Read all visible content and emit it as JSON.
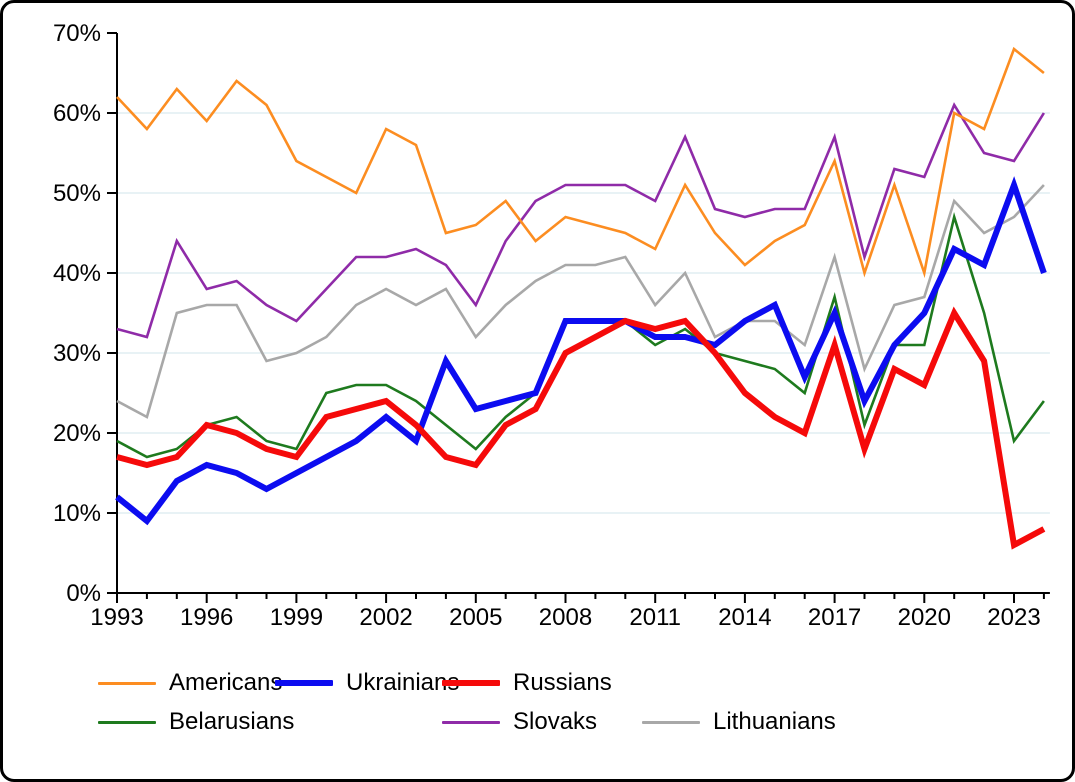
{
  "chart_data": {
    "type": "line",
    "title": "",
    "xlabel": "",
    "ylabel": "",
    "x": [
      1993,
      1994,
      1995,
      1996,
      1997,
      1998,
      1999,
      2000,
      2001,
      2002,
      2003,
      2004,
      2005,
      2006,
      2007,
      2008,
      2009,
      2010,
      2011,
      2012,
      2013,
      2014,
      2015,
      2016,
      2017,
      2018,
      2019,
      2020,
      2021,
      2022,
      2023,
      2024
    ],
    "x_tick_labels": [
      "1993",
      "1996",
      "1999",
      "2002",
      "2005",
      "2008",
      "2011",
      "2014",
      "2017",
      "2020",
      "2023"
    ],
    "x_labeled_years": [
      1993,
      1996,
      1999,
      2002,
      2005,
      2008,
      2011,
      2014,
      2017,
      2020,
      2023
    ],
    "y_ticks": [
      0,
      10,
      20,
      30,
      40,
      50,
      60,
      70
    ],
    "y_tick_labels": [
      "0%",
      "10%",
      "20%",
      "30%",
      "40%",
      "50%",
      "60%",
      "70%"
    ],
    "grid_ticks": [
      10,
      20,
      30,
      40,
      50,
      60
    ],
    "ylim": [
      0,
      70
    ],
    "grid_color": "#E0EDF2",
    "axis_color": "#000000",
    "legend_position": "bottom",
    "series": [
      {
        "name": "Americans",
        "color": "#FC8D21",
        "thick": false,
        "values": [
          62,
          58,
          63,
          59,
          64,
          61,
          54,
          52,
          50,
          58,
          56,
          45,
          46,
          49,
          44,
          47,
          46,
          45,
          43,
          51,
          45,
          41,
          44,
          46,
          54,
          40,
          51,
          40,
          60,
          58,
          68,
          65
        ]
      },
      {
        "name": "Ukrainians",
        "color": "#0C0CF0",
        "thick": true,
        "values": [
          12,
          9,
          14,
          16,
          15,
          13,
          15,
          17,
          19,
          22,
          19,
          29,
          23,
          24,
          25,
          34,
          34,
          34,
          32,
          32,
          31,
          34,
          36,
          27,
          35,
          24,
          31,
          35,
          43,
          41,
          51,
          40
        ]
      },
      {
        "name": "Russians",
        "color": "#F50A0A",
        "thick": true,
        "values": [
          17,
          16,
          17,
          21,
          20,
          18,
          17,
          22,
          23,
          24,
          21,
          17,
          16,
          21,
          23,
          30,
          32,
          34,
          33,
          34,
          30,
          25,
          22,
          20,
          31,
          18,
          28,
          26,
          35,
          29,
          6,
          8
        ]
      },
      {
        "name": "Belarusians",
        "color": "#1E7A1E",
        "thick": false,
        "values": [
          19,
          17,
          18,
          21,
          22,
          19,
          18,
          25,
          26,
          26,
          24,
          21,
          18,
          22,
          25,
          34,
          34,
          34,
          31,
          33,
          30,
          29,
          28,
          25,
          37,
          21,
          31,
          31,
          47,
          35,
          19,
          24
        ]
      },
      {
        "name": "Slovaks",
        "color": "#8F2BA8",
        "thick": false,
        "values": [
          33,
          32,
          44,
          38,
          39,
          36,
          34,
          38,
          42,
          42,
          43,
          41,
          36,
          44,
          49,
          51,
          51,
          51,
          49,
          57,
          48,
          47,
          48,
          48,
          57,
          42,
          53,
          52,
          61,
          55,
          54,
          60
        ]
      },
      {
        "name": "Lithuanians",
        "color": "#A8A8A8",
        "thick": false,
        "values": [
          24,
          22,
          35,
          36,
          36,
          29,
          30,
          32,
          36,
          38,
          36,
          38,
          32,
          36,
          39,
          41,
          41,
          42,
          36,
          40,
          32,
          34,
          34,
          31,
          42,
          28,
          36,
          37,
          49,
          45,
          47,
          51
        ]
      }
    ],
    "legend_rows": [
      [
        0,
        1,
        2
      ],
      [
        3,
        4,
        5
      ]
    ]
  }
}
